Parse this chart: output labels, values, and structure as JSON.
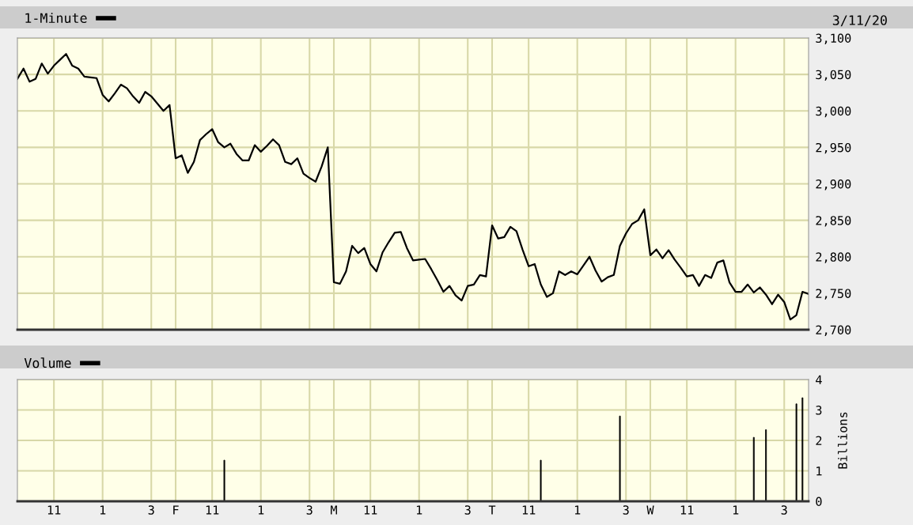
{
  "chart_data": [
    {
      "type": "line",
      "annotations": [
        "3/11/20"
      ],
      "legend": "top left",
      "grid": true,
      "tick_labels": "y",
      "categories": [
        null,
        null,
        null,
        null,
        null,
        null,
        null,
        null,
        null,
        null,
        null,
        null,
        null,
        null,
        null,
        null,
        null,
        null,
        null,
        null,
        null,
        null,
        null,
        null,
        null,
        null,
        null,
        null,
        null,
        null,
        null,
        null,
        null,
        null,
        null,
        null,
        null,
        null,
        null,
        null,
        null,
        null,
        null,
        null,
        null,
        null,
        null,
        null,
        null,
        null,
        null,
        null,
        null,
        null,
        null,
        null,
        null,
        null,
        null,
        null,
        null,
        null,
        null,
        null,
        null,
        null,
        null,
        null,
        null,
        null,
        null,
        null,
        null,
        null,
        null,
        null,
        null,
        null,
        null,
        null,
        null,
        null,
        null,
        null,
        null,
        null,
        null,
        null,
        null,
        null,
        null,
        null,
        null,
        null,
        null,
        null,
        null,
        null,
        null,
        null,
        null,
        null,
        null,
        null,
        null,
        null,
        null,
        null,
        null,
        null,
        null,
        null,
        null,
        null,
        null,
        null,
        null,
        null,
        null,
        null,
        null,
        null,
        null,
        null,
        null,
        null,
        null,
        null,
        null,
        null,
        null
      ],
      "ylim": [
        2700,
        3100
      ],
      "yticks": [
        {
          "value": 2700,
          "label": "2,700"
        },
        {
          "value": 2750,
          "label": "2,750"
        },
        {
          "value": 2800,
          "label": "2,800"
        },
        {
          "value": 2850,
          "label": "2,850"
        },
        {
          "value": 2900,
          "label": "2,900"
        },
        {
          "value": 2950,
          "label": "2,950"
        },
        {
          "value": 3000,
          "label": "3,000"
        },
        {
          "value": 3050,
          "label": "3,050"
        },
        {
          "value": 3100,
          "label": "3,100"
        }
      ],
      "series": [
        {
          "name": "1-Minute",
          "color": "#000000",
          "values": [
            3044,
            3058,
            3040,
            3044,
            3065,
            3051,
            3062,
            3070,
            3078,
            3062,
            3058,
            3047,
            3046,
            3045,
            3022,
            3013,
            3024,
            3036,
            3031,
            3020,
            3011,
            3026,
            3020,
            3010,
            3000,
            3008,
            2935,
            2939,
            2915,
            2930,
            2960,
            2968,
            2975,
            2957,
            2950,
            2955,
            2941,
            2932,
            2932,
            2953,
            2944,
            2952,
            2961,
            2953,
            2930,
            2927,
            2935,
            2914,
            2908,
            2903,
            2924,
            2950,
            2765,
            2763,
            2780,
            2815,
            2805,
            2812,
            2790,
            2780,
            2806,
            2820,
            2833,
            2834,
            2812,
            2795,
            2796,
            2797,
            2783,
            2768,
            2752,
            2760,
            2747,
            2740,
            2760,
            2762,
            2775,
            2773,
            2843,
            2825,
            2827,
            2841,
            2835,
            2810,
            2787,
            2790,
            2762,
            2745,
            2750,
            2780,
            2775,
            2780,
            2776,
            2788,
            2800,
            2781,
            2766,
            2772,
            2775,
            2815,
            2832,
            2845,
            2850,
            2865,
            2802,
            2810,
            2798,
            2809,
            2796,
            2785,
            2773,
            2775,
            2760,
            2775,
            2771,
            2792,
            2795,
            2765,
            2752,
            2752,
            2762,
            2751,
            2758,
            2748,
            2735,
            2748,
            2738,
            2714,
            2720,
            2752,
            2749
          ]
        }
      ]
    },
    {
      "type": "bar",
      "legend": "top left",
      "grid": true,
      "ylabel": "Billions",
      "categories": [
        null,
        null,
        null,
        null,
        null,
        null,
        "11",
        null,
        null,
        null,
        null,
        null,
        null,
        null,
        "1",
        null,
        null,
        null,
        null,
        null,
        null,
        null,
        "3",
        null,
        null,
        null,
        "F",
        null,
        null,
        null,
        null,
        null,
        "11",
        null,
        null,
        null,
        null,
        null,
        null,
        null,
        "1",
        null,
        null,
        null,
        null,
        null,
        null,
        null,
        "3",
        null,
        null,
        null,
        "M",
        null,
        null,
        null,
        null,
        null,
        "11",
        null,
        null,
        null,
        null,
        null,
        null,
        null,
        "1",
        null,
        null,
        null,
        null,
        null,
        null,
        null,
        "3",
        null,
        null,
        null,
        "T",
        null,
        null,
        null,
        null,
        null,
        "11",
        null,
        null,
        null,
        null,
        null,
        null,
        null,
        "1",
        null,
        null,
        null,
        null,
        null,
        null,
        null,
        "3",
        null,
        null,
        null,
        "W",
        null,
        null,
        null,
        null,
        null,
        "11",
        null,
        null,
        null,
        null,
        null,
        null,
        null,
        "1",
        null,
        null,
        null,
        null,
        null,
        null,
        null,
        "3",
        null,
        null,
        null,
        null
      ],
      "ylim": [
        0,
        4
      ],
      "yticks": [
        0,
        1,
        2,
        3,
        4
      ],
      "series": [
        {
          "name": "Volume",
          "color": "#000000",
          "values": [
            null,
            null,
            null,
            null,
            null,
            null,
            null,
            null,
            null,
            null,
            null,
            null,
            null,
            null,
            null,
            null,
            null,
            null,
            null,
            null,
            null,
            null,
            null,
            null,
            null,
            null,
            null,
            null,
            null,
            null,
            null,
            null,
            null,
            null,
            1.35,
            null,
            null,
            null,
            null,
            null,
            null,
            null,
            null,
            null,
            null,
            null,
            null,
            null,
            null,
            null,
            null,
            null,
            null,
            null,
            null,
            null,
            null,
            null,
            null,
            null,
            null,
            null,
            null,
            null,
            null,
            null,
            null,
            null,
            null,
            null,
            null,
            null,
            null,
            null,
            null,
            null,
            null,
            null,
            null,
            null,
            null,
            null,
            null,
            null,
            null,
            null,
            1.35,
            null,
            null,
            null,
            null,
            null,
            null,
            null,
            null,
            null,
            null,
            null,
            null,
            2.8,
            null,
            null,
            null,
            null,
            null,
            null,
            null,
            null,
            null,
            null,
            null,
            null,
            null,
            null,
            null,
            null,
            null,
            null,
            null,
            null,
            null,
            2.1,
            null,
            2.35,
            null,
            null,
            null,
            null,
            3.2,
            3.4,
            null
          ]
        }
      ]
    }
  ]
}
